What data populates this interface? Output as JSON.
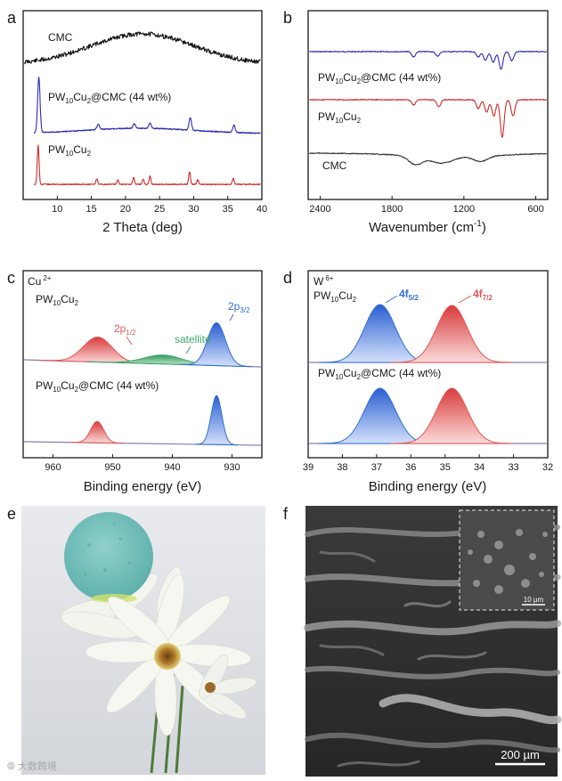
{
  "panels": {
    "a": {
      "letter": "a",
      "chart_data": {
        "type": "line",
        "title": "",
        "xlabel": "2 Theta (deg)",
        "ylabel": "",
        "xlim": [
          5,
          40
        ],
        "xticks": [
          10,
          15,
          20,
          25,
          30,
          35,
          40
        ],
        "series": [
          {
            "name": "CMC",
            "label": "CMC",
            "color": "#111111",
            "kind": "amorphous",
            "broad_center": 22.5
          },
          {
            "name": "PW10Cu2@CMC (44 wt%)",
            "label_main": "PW",
            "label_sub1": "10",
            "label_mid": "Cu",
            "label_sub2": "2",
            "label_tail": "@CMC (44 wt%)",
            "color": "#2b2bb5",
            "peaks": [
              7.3,
              16.0,
              21.3,
              23.6,
              29.5,
              35.9
            ]
          },
          {
            "name": "PW10Cu2",
            "label_main": "PW",
            "label_sub1": "10",
            "label_mid": "Cu",
            "label_sub2": "2",
            "color": "#cc2b2b",
            "peaks": [
              7.2,
              15.8,
              18.9,
              21.2,
              22.6,
              23.6,
              29.4,
              30.6,
              35.8
            ]
          }
        ]
      }
    },
    "b": {
      "letter": "b",
      "chart_data": {
        "type": "line",
        "title": "",
        "xlabel_main": "Wavenumber (cm",
        "xlabel_sup": "-1",
        "xlabel_end": ")",
        "xlim": [
          2500,
          500
        ],
        "xticks": [
          2400,
          1800,
          1200,
          600
        ],
        "series": [
          {
            "name": "PW10Cu2@CMC (44 wt%)",
            "label_main": "PW",
            "label_sub1": "10",
            "label_mid": "Cu",
            "label_sub2": "2",
            "label_tail": "@CMC (44 wt%)",
            "color": "#2b2bb5",
            "bands": [
              1620,
              1420,
              1080,
              1020,
              955,
              890,
              800
            ]
          },
          {
            "name": "PW10Cu2",
            "label_main": "PW",
            "label_sub1": "10",
            "label_mid": "Cu",
            "label_sub2": "2",
            "color": "#cc2b2b",
            "bands": [
              1620,
              1410,
              1080,
              1010,
              950,
              880,
              790
            ]
          },
          {
            "name": "CMC",
            "label": "CMC",
            "color": "#333333",
            "bands": [
              1600,
              1420,
              1320,
              1060
            ]
          }
        ]
      }
    },
    "c": {
      "letter": "c",
      "chart_data": {
        "type": "line",
        "title": "",
        "xlabel": "Binding energy (eV)",
        "xlim": [
          965,
          925
        ],
        "xticks": [
          960,
          950,
          940,
          930
        ],
        "corner_main": "Cu",
        "corner_sup": "2+",
        "series": [
          {
            "name": "PW10Cu2",
            "label_main": "PW",
            "label_sub1": "10",
            "label_mid": "Cu",
            "label_sub2": "2",
            "components": [
              {
                "name": "2p1/2",
                "center": 952.5,
                "color": "#e05555"
              },
              {
                "name": "satellite",
                "center": 941.5,
                "color": "#3aa565"
              },
              {
                "name": "2p3/2",
                "center": 932.6,
                "color": "#2f6fd0"
              }
            ]
          },
          {
            "name": "PW10Cu2@CMC (44 wt%)",
            "label_main": "PW",
            "label_sub1": "10",
            "label_mid": "Cu",
            "label_sub2": "2",
            "label_tail": "@CMC (44 wt%)",
            "components": [
              {
                "name": "2p1/2",
                "center": 952.6,
                "color": "#e05555"
              },
              {
                "name": "2p3/2",
                "center": 932.6,
                "color": "#2f6fd0"
              }
            ]
          }
        ],
        "annotations": {
          "p12_main": "2p",
          "p12_sub": "1/2",
          "satellite": "satellite",
          "p32_main": "2p",
          "p32_sub": "3/2"
        }
      }
    },
    "d": {
      "letter": "d",
      "chart_data": {
        "type": "line",
        "title": "",
        "xlabel": "Binding energy (eV)",
        "xlim": [
          39,
          32
        ],
        "xticks": [
          39,
          38,
          37,
          36,
          35,
          34,
          33,
          32
        ],
        "corner_main": "W",
        "corner_sup": "6+",
        "series": [
          {
            "name": "PW10Cu2",
            "label_main": "PW",
            "label_sub1": "10",
            "label_mid": "Cu",
            "label_sub2": "2",
            "components": [
              {
                "name": "4f5/2",
                "center": 36.9,
                "color": "#2f6fd0"
              },
              {
                "name": "4f7/2",
                "center": 34.8,
                "color": "#e05555"
              }
            ]
          },
          {
            "name": "PW10Cu2@CMC (44 wt%)",
            "label_main": "PW",
            "label_sub1": "10",
            "label_mid": "Cu",
            "label_sub2": "2",
            "label_tail": "@CMC (44 wt%)",
            "components": [
              {
                "name": "4f5/2",
                "center": 36.9,
                "color": "#2f6fd0"
              },
              {
                "name": "4f7/2",
                "center": 34.8,
                "color": "#e05555"
              }
            ]
          }
        ],
        "annotations": {
          "f52_main": "4f",
          "f52_sub": "5/2",
          "f72_main": "4f",
          "f72_sub": "7/2"
        }
      }
    },
    "e": {
      "letter": "e"
    },
    "f": {
      "letter": "f",
      "inset_scale": "10 µm",
      "scale": "200 µm"
    }
  },
  "watermark": "⦾ 大数跨境"
}
